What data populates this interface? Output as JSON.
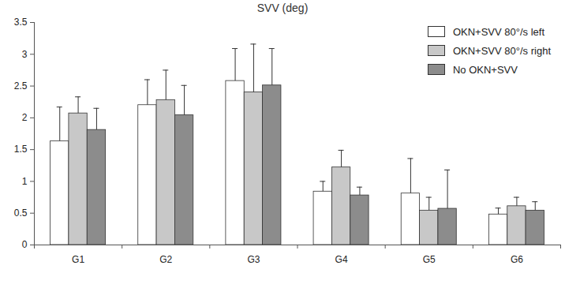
{
  "chart_data": {
    "type": "bar",
    "title": "SVV (deg)",
    "categories": [
      "G1",
      "G2",
      "G3",
      "G4",
      "G5",
      "G6"
    ],
    "series": [
      {
        "name": "OKN+SVV 80°/s left",
        "color": "#ffffff",
        "values": [
          1.63,
          2.2,
          2.58,
          0.84,
          0.81,
          0.48
        ],
        "errors": [
          0.54,
          0.4,
          0.51,
          0.16,
          0.55,
          0.1
        ]
      },
      {
        "name": "OKN+SVV 80°/s right",
        "color": "#c8c8c8",
        "values": [
          2.07,
          2.28,
          2.4,
          1.22,
          0.54,
          0.61
        ],
        "errors": [
          0.26,
          0.47,
          0.76,
          0.27,
          0.21,
          0.14
        ]
      },
      {
        "name": "No OKN+SVV",
        "color": "#8c8c8c",
        "values": [
          1.81,
          2.04,
          2.51,
          0.78,
          0.57,
          0.54
        ],
        "errors": [
          0.34,
          0.47,
          0.58,
          0.13,
          0.61,
          0.14
        ]
      }
    ],
    "ylim": [
      0,
      3.5
    ],
    "yticks": [
      0,
      0.5,
      1,
      1.5,
      2,
      2.5,
      3,
      3.5
    ],
    "grid": false,
    "legend": "top-right"
  }
}
